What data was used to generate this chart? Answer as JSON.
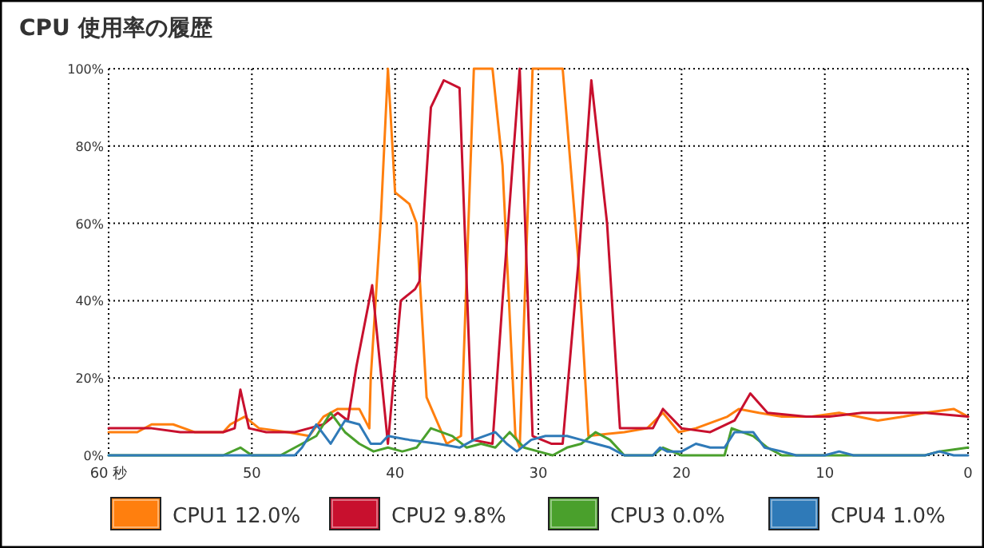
{
  "chart_data": {
    "type": "line",
    "title": "CPU 使用率の履歴",
    "xlim": [
      60,
      0
    ],
    "xticks": [
      {
        "value": 60,
        "label": "60 秒"
      },
      50,
      40,
      30,
      20,
      10,
      0
    ],
    "ylim": [
      0,
      100
    ],
    "yticks": [
      {
        "value": 0,
        "label": "0%"
      },
      {
        "value": 20,
        "label": "20%"
      },
      {
        "value": 40,
        "label": "40%"
      },
      {
        "value": 60,
        "label": "60%"
      },
      {
        "value": 80,
        "label": "80%"
      },
      {
        "value": 100,
        "label": "100%"
      }
    ],
    "grid": true,
    "legend": "bottom",
    "line_style": "solid",
    "marker": "none",
    "series": [
      {
        "name": "CPU1 12.0%",
        "color": "#ff7f0e",
        "x": [
          60,
          58,
          57,
          55.5,
          54,
          52,
          51.5,
          50.5,
          49.5,
          47.5,
          46,
          45,
          44,
          42.5,
          41.8,
          41.7,
          41,
          40.5,
          40,
          39,
          38.5,
          37.8,
          36.4,
          35.4,
          34.5,
          33.2,
          32.5,
          31.6,
          31.3,
          30.4,
          28.3,
          27.2,
          26.5,
          24,
          22.4,
          21.3,
          20.2,
          19,
          16.8,
          16,
          14.6,
          13,
          11,
          9,
          6.3,
          4.5,
          3,
          1,
          0
        ],
        "values": [
          6,
          6,
          8,
          8,
          6,
          6,
          8,
          10,
          7,
          6,
          5,
          10,
          12,
          12,
          7,
          20,
          61,
          100,
          68,
          65,
          60,
          15,
          3,
          5,
          100,
          100,
          75,
          5,
          2,
          100,
          100,
          50,
          5,
          6,
          7,
          11,
          6,
          7,
          10,
          12,
          11,
          10,
          10,
          11,
          9,
          10,
          11,
          12,
          10
        ]
      },
      {
        "name": "CPU2 9.8%",
        "color": "#c8102e",
        "x": [
          60,
          57,
          55,
          52,
          51.2,
          50.8,
          50.2,
          49,
          47,
          46,
          45,
          44,
          43.3,
          42.7,
          41.6,
          40.5,
          39.6,
          38.6,
          38.3,
          37.5,
          36.6,
          35.5,
          34.6,
          33.2,
          32.5,
          31.3,
          30.4,
          29.1,
          28.3,
          27.2,
          26.3,
          25.2,
          24.3,
          22,
          21.3,
          20,
          18,
          16.3,
          15.2,
          14,
          11.3,
          9.7,
          7.4,
          5.7,
          3,
          0
        ],
        "values": [
          7,
          7,
          6,
          6,
          7,
          17,
          7,
          6,
          6,
          7,
          8,
          11,
          9,
          23,
          44,
          3,
          40,
          43,
          45,
          90,
          97,
          95,
          4,
          3,
          40,
          100,
          5,
          3,
          3,
          50,
          97,
          60,
          7,
          7,
          12,
          7,
          6,
          9,
          16,
          11,
          10,
          10,
          11,
          11,
          11,
          10
        ]
      },
      {
        "name": "CPU3 0.0%",
        "color": "#4aa02c",
        "x": [
          60,
          52,
          50.8,
          50,
          48,
          46.5,
          45.5,
          44.5,
          43.5,
          42.5,
          41.5,
          40.5,
          39.5,
          38.5,
          37.5,
          36,
          35,
          34,
          33,
          32,
          31,
          30,
          29,
          28,
          27,
          26,
          25,
          24,
          22,
          21.3,
          20,
          17,
          16.5,
          15,
          14,
          13,
          3,
          2,
          0
        ],
        "values": [
          0,
          0,
          2,
          0,
          0,
          3,
          5,
          11,
          6,
          3,
          1,
          2,
          1,
          2,
          7,
          5,
          2,
          3,
          2,
          6,
          2,
          1,
          0,
          2,
          3,
          6,
          4,
          0,
          0,
          2,
          0,
          0,
          7,
          5,
          2,
          0,
          0,
          1,
          2
        ]
      },
      {
        "name": "CPU4 1.0%",
        "color": "#2f7ab8",
        "x": [
          60,
          47,
          46.5,
          45.5,
          44.5,
          43.5,
          42.5,
          41.7,
          41,
          40.5,
          39,
          37,
          35.5,
          34.5,
          33,
          32.2,
          31.5,
          30.5,
          29.5,
          28,
          27,
          26,
          25,
          24,
          22,
          21.5,
          21,
          20,
          19,
          18,
          17,
          16.3,
          15,
          14.2,
          13,
          12,
          10,
          9,
          8,
          3,
          2,
          1,
          0
        ],
        "values": [
          0,
          0,
          2,
          8,
          3,
          9,
          8,
          3,
          3,
          5,
          4,
          3,
          2,
          4,
          6,
          3,
          1,
          4,
          5,
          5,
          4,
          3,
          2,
          0,
          0,
          2,
          1,
          1,
          3,
          2,
          2,
          6,
          6,
          2,
          1,
          0,
          0,
          1,
          0,
          0,
          1,
          0,
          0
        ]
      }
    ]
  }
}
